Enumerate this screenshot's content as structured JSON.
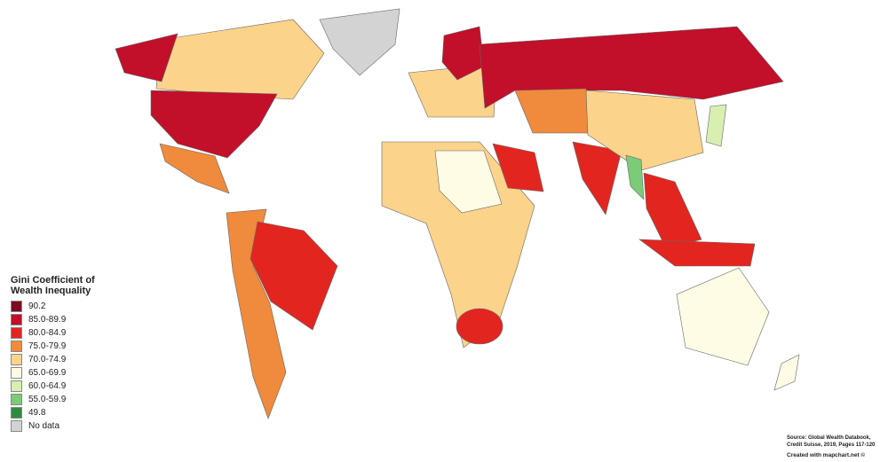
{
  "legend": {
    "title": "Gini Coefficient of Wealth Inequality",
    "items": [
      {
        "label": "90.2",
        "color": "#7e0b1f"
      },
      {
        "label": "85.0-89.9",
        "color": "#c20f2a"
      },
      {
        "label": "80.0-84.9",
        "color": "#e2261f"
      },
      {
        "label": "75.0-79.9",
        "color": "#f08a3c"
      },
      {
        "label": "70.0-74.9",
        "color": "#fbd38b"
      },
      {
        "label": "65.0-69.9",
        "color": "#fffce6"
      },
      {
        "label": "60.0-64.9",
        "color": "#d8efb0"
      },
      {
        "label": "55.0-59.9",
        "color": "#7ccb78"
      },
      {
        "label": "49.8",
        "color": "#2f8a40"
      },
      {
        "label": "No data",
        "color": "#d3d3d3"
      }
    ]
  },
  "source": [
    "Source: Global Wealth Databook,",
    "Credit Suisse, 2019, Pages 117-120"
  ],
  "credit": "Created with mapchart.net ©"
}
